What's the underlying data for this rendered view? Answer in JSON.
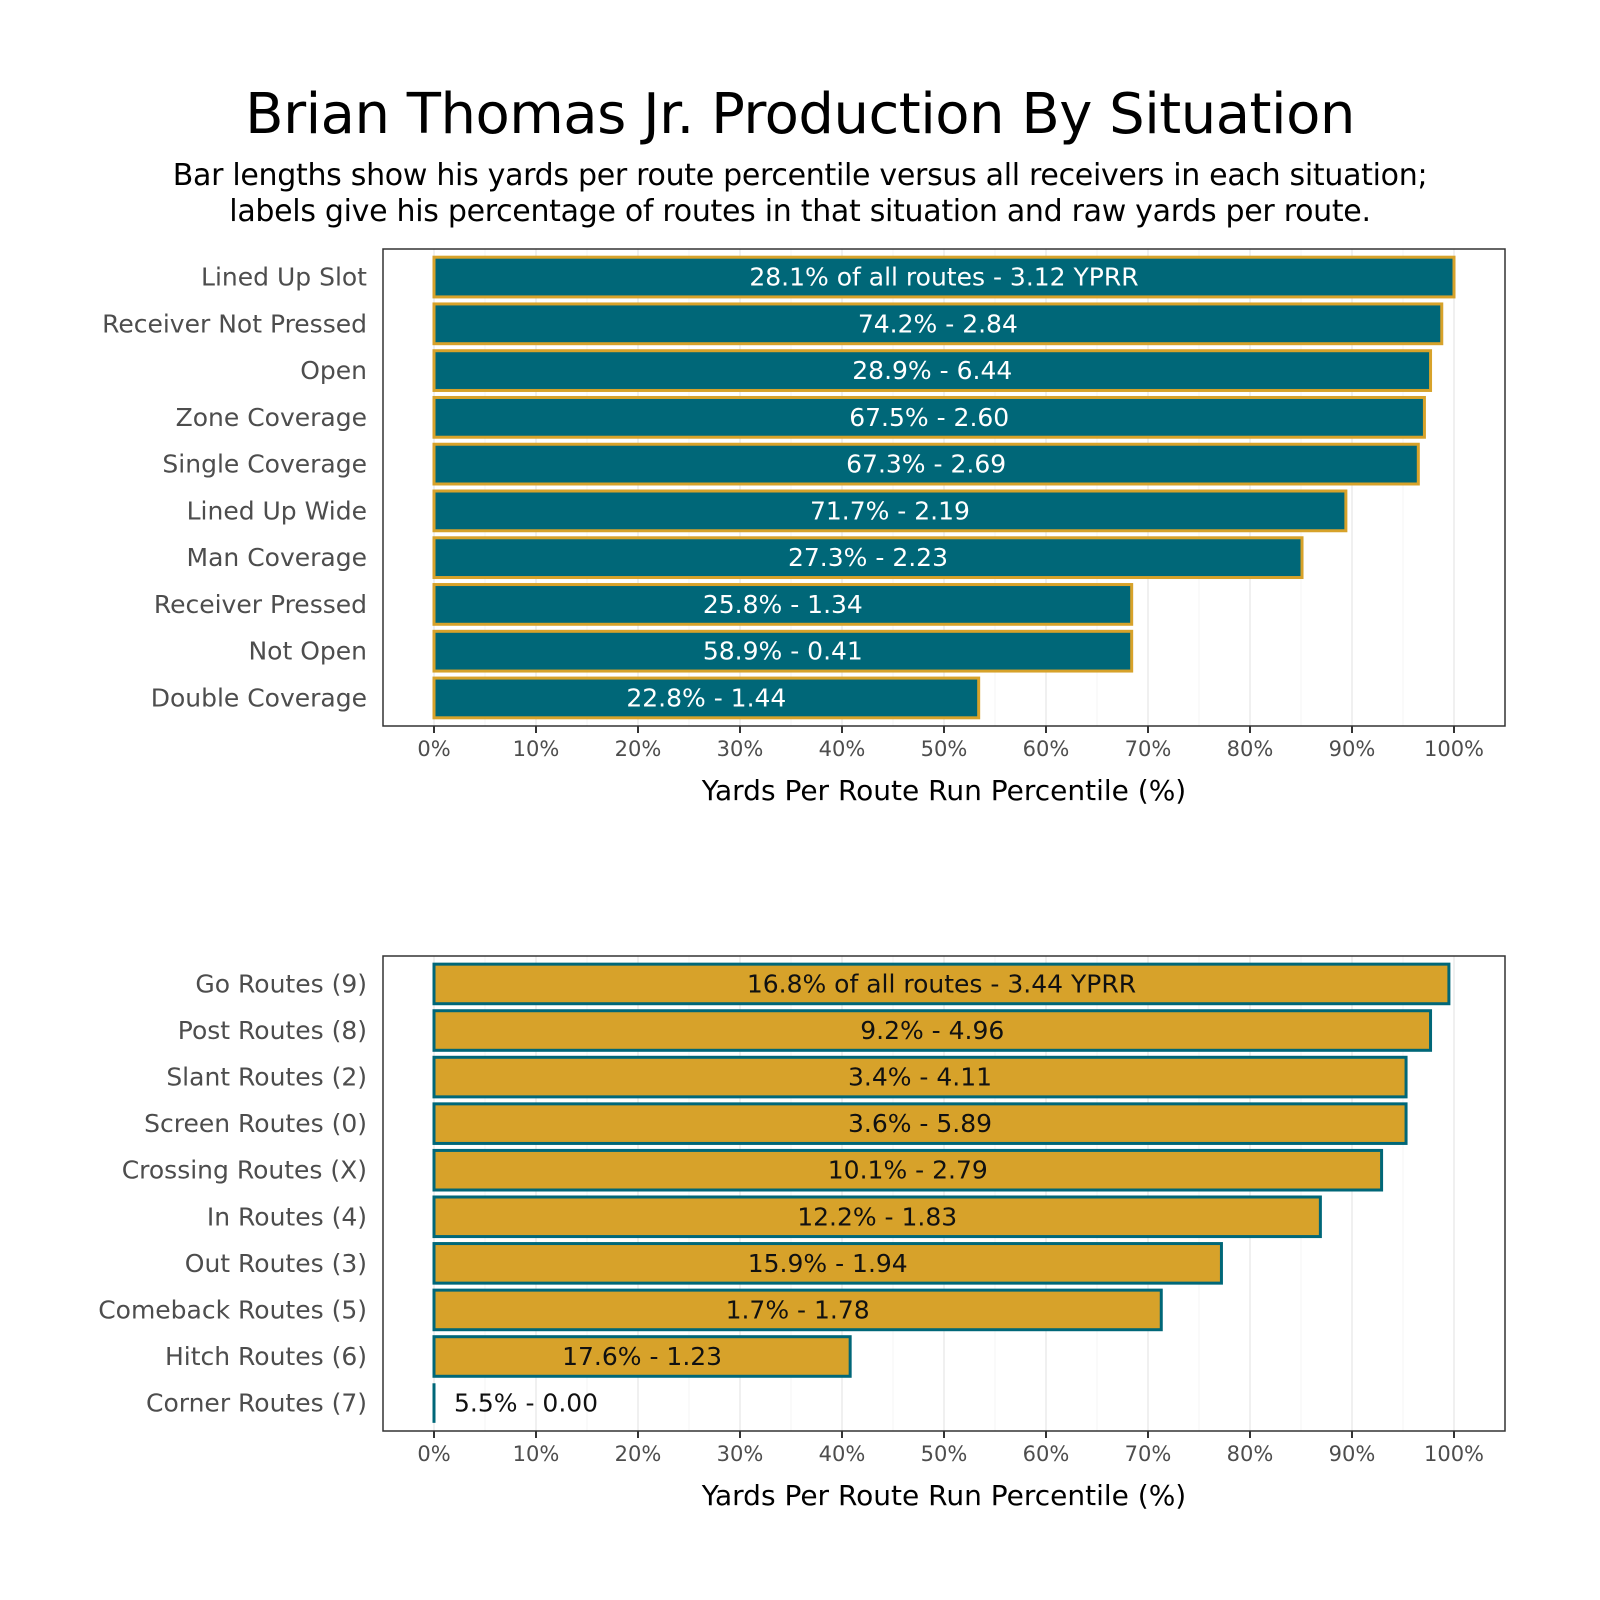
{
  "title": "Brian Thomas Jr. Production By Situation",
  "subtitle_lines": [
    "Bar lengths show his yards per route percentile versus all receivers in each situation;",
    "labels give his percentage of routes in that situation and raw yards per route."
  ],
  "colors": {
    "teal": "#006778",
    "gold": "#D7A22A",
    "label_on_teal": "#ffffff",
    "label_on_gold": "#111111"
  },
  "chart_data": [
    {
      "type": "bar",
      "orientation": "horizontal",
      "name": "situation",
      "fill": "teal",
      "outline": "gold",
      "categories": [
        "Lined Up Slot",
        "Receiver Not Pressed",
        "Open",
        "Zone Coverage",
        "Single Coverage",
        "Lined Up Wide",
        "Man Coverage",
        "Receiver Pressed",
        "Not Open",
        "Double Coverage"
      ],
      "values": [
        100.0,
        98.8,
        97.7,
        97.1,
        96.5,
        89.4,
        85.1,
        68.4,
        68.4,
        53.4
      ],
      "labels": [
        "28.1% of all routes - 3.12 YPRR",
        "74.2% - 2.84",
        "28.9% - 6.44",
        "67.5% - 2.60",
        "67.3% - 2.69",
        "71.7% - 2.19",
        "27.3% - 2.23",
        "25.8% - 1.34",
        "58.9% - 0.41",
        "22.8% - 1.44"
      ],
      "xlabel": "Yards Per Route Run Percentile (%)",
      "ylabel": "",
      "xlim": [
        0,
        100
      ],
      "xticks": [
        "0%",
        "10%",
        "20%",
        "30%",
        "40%",
        "50%",
        "60%",
        "70%",
        "80%",
        "90%",
        "100%"
      ],
      "grid": true
    },
    {
      "type": "bar",
      "orientation": "horizontal",
      "name": "routes",
      "fill": "gold",
      "outline": "teal",
      "categories": [
        "Go Routes (9)",
        "Post Routes (8)",
        "Slant Routes (2)",
        "Screen Routes (0)",
        "Crossing Routes (X)",
        "In Routes (4)",
        "Out Routes (3)",
        "Comeback Routes (5)",
        "Hitch Routes (6)",
        "Corner Routes (7)"
      ],
      "values": [
        99.5,
        97.7,
        95.3,
        95.3,
        92.9,
        86.9,
        77.2,
        71.3,
        40.8,
        0.0
      ],
      "labels": [
        "16.8% of all routes - 3.44 YPRR",
        "9.2% - 4.96",
        "3.4% - 4.11",
        "3.6% - 5.89",
        "10.1% - 2.79",
        "12.2% - 1.83",
        "15.9% - 1.94",
        "1.7% - 1.78",
        "17.6% - 1.23",
        "5.5% - 0.00"
      ],
      "xlabel": "Yards Per Route Run Percentile (%)",
      "ylabel": "",
      "xlim": [
        0,
        100
      ],
      "xticks": [
        "0%",
        "10%",
        "20%",
        "30%",
        "40%",
        "50%",
        "60%",
        "70%",
        "80%",
        "90%",
        "100%"
      ],
      "grid": true
    }
  ]
}
